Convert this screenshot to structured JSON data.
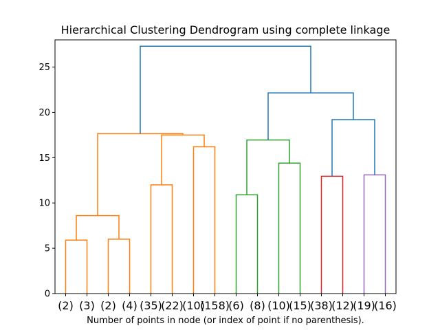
{
  "chart_data": {
    "type": "dendrogram",
    "title": "Hierarchical Clustering Dendrogram using complete linkage",
    "xlabel": "Number of points in node (or index of point if no parenthesis).",
    "ylabel": "",
    "ylim": [
      0,
      28
    ],
    "yticks": [
      0,
      5,
      10,
      15,
      20,
      25
    ],
    "grid": false,
    "leaf_labels": [
      "(2)",
      "(3)",
      "(2)",
      "(4)",
      "(35)",
      "(22)",
      "(10)",
      "(158)",
      "(6)",
      "(8)",
      "(10)",
      "(15)",
      "(38)",
      "(12)",
      "(19)",
      "(16)"
    ],
    "colors": {
      "above_threshold": "#1f77b4",
      "orange": "#ff7f0e",
      "green": "#2ca02c",
      "red": "#d62728",
      "purple": "#9467bd"
    },
    "merges": [
      {
        "left": "leaf:0",
        "right": "leaf:1",
        "height": 5.9,
        "color": "orange"
      },
      {
        "left": "leaf:2",
        "right": "leaf:3",
        "height": 6.0,
        "color": "orange"
      },
      {
        "left": "leaf:4",
        "right": "leaf:5",
        "height": 12.0,
        "color": "orange"
      },
      {
        "left": "leaf:6",
        "right": "leaf:7",
        "height": 16.2,
        "color": "orange"
      },
      {
        "left": "leaf:8",
        "right": "leaf:9",
        "height": 10.9,
        "color": "green"
      },
      {
        "left": "leaf:10",
        "right": "leaf:11",
        "height": 14.4,
        "color": "green"
      },
      {
        "left": "leaf:12",
        "right": "leaf:13",
        "height": 12.95,
        "color": "red"
      },
      {
        "left": "leaf:14",
        "right": "leaf:15",
        "height": 13.1,
        "color": "purple"
      },
      {
        "left": "node:0",
        "right": "node:1",
        "height": 8.6,
        "color": "orange"
      },
      {
        "left": "node:2",
        "right": "node:3",
        "height": 17.5,
        "color": "orange"
      },
      {
        "left": "node:8",
        "right": "node:9",
        "height": 17.65,
        "color": "orange"
      },
      {
        "left": "node:4",
        "right": "node:5",
        "height": 16.95,
        "color": "green"
      },
      {
        "left": "node:6",
        "right": "node:7",
        "height": 19.2,
        "color": "above_threshold"
      },
      {
        "left": "node:11",
        "right": "node:12",
        "height": 22.15,
        "color": "above_threshold"
      },
      {
        "left": "node:10",
        "right": "node:13",
        "height": 27.3,
        "color": "above_threshold"
      }
    ]
  }
}
